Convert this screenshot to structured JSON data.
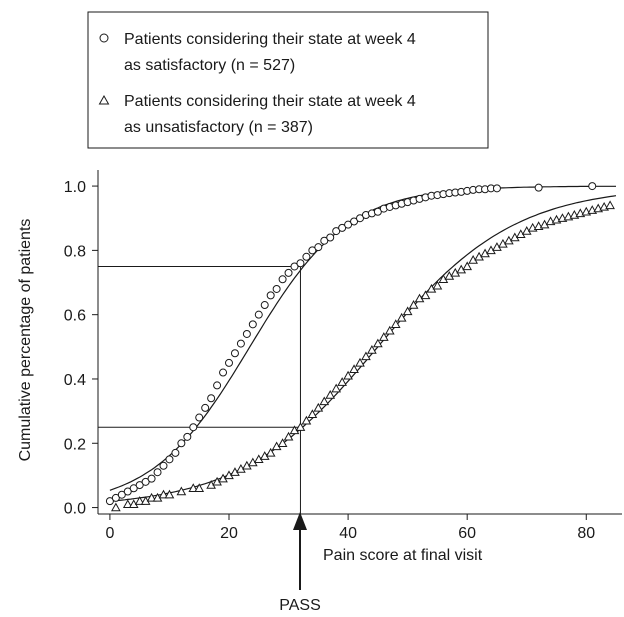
{
  "chart_data": {
    "type": "scatter",
    "xlabel": "Pain score at final visit",
    "ylabel": "Cumulative percentage of patients",
    "xlim": [
      -2,
      86
    ],
    "ylim": [
      -0.02,
      1.05
    ],
    "x_ticks": [
      0,
      20,
      40,
      60,
      80
    ],
    "y_ticks": [
      0.0,
      0.2,
      0.4,
      0.6,
      0.8,
      1.0
    ],
    "legend": {
      "placement": "top",
      "entries": [
        {
          "marker": "circle",
          "lines": [
            "Patients considering their state at week 4",
            "as satisfactory (n = 527)"
          ]
        },
        {
          "marker": "triangle",
          "lines": [
            "Patients considering their state at week 4",
            "as unsatisfactory (n = 387)"
          ]
        }
      ]
    },
    "series": [
      {
        "marker": "circle",
        "fit": {
          "mu": 23.5,
          "s": 8.2
        },
        "x": [
          0,
          1,
          2,
          3,
          4,
          5,
          6,
          7,
          8,
          9,
          10,
          11,
          12,
          13,
          14,
          15,
          16,
          17,
          18,
          19,
          20,
          21,
          22,
          23,
          24,
          25,
          26,
          27,
          28,
          29,
          30,
          31,
          32,
          33,
          34,
          35,
          36,
          37,
          38,
          39,
          40,
          41,
          42,
          43,
          44,
          45,
          46,
          47,
          48,
          49,
          50,
          51,
          52,
          53,
          54,
          55,
          56,
          57,
          58,
          59,
          60,
          61,
          62,
          63,
          64,
          65,
          72,
          81
        ],
        "y": [
          0.02,
          0.03,
          0.04,
          0.05,
          0.06,
          0.07,
          0.08,
          0.09,
          0.11,
          0.13,
          0.15,
          0.17,
          0.2,
          0.22,
          0.25,
          0.28,
          0.31,
          0.34,
          0.38,
          0.42,
          0.45,
          0.48,
          0.51,
          0.54,
          0.57,
          0.6,
          0.63,
          0.66,
          0.68,
          0.71,
          0.73,
          0.75,
          0.76,
          0.78,
          0.8,
          0.81,
          0.83,
          0.84,
          0.86,
          0.87,
          0.88,
          0.89,
          0.9,
          0.91,
          0.915,
          0.92,
          0.93,
          0.935,
          0.94,
          0.945,
          0.95,
          0.955,
          0.96,
          0.965,
          0.97,
          0.972,
          0.975,
          0.978,
          0.98,
          0.982,
          0.985,
          0.988,
          0.99,
          0.99,
          0.993,
          0.993,
          0.995,
          1.0
        ]
      },
      {
        "marker": "triangle",
        "fit": {
          "mu": 45.0,
          "s": 11.5
        },
        "x": [
          1,
          3,
          4,
          5,
          6,
          7,
          8,
          9,
          10,
          12,
          14,
          15,
          17,
          18,
          19,
          20,
          21,
          22,
          23,
          24,
          25,
          26,
          27,
          28,
          29,
          30,
          31,
          32,
          33,
          34,
          35,
          36,
          37,
          38,
          39,
          40,
          41,
          42,
          43,
          44,
          45,
          46,
          47,
          48,
          49,
          50,
          51,
          52,
          53,
          54,
          55,
          56,
          57,
          58,
          59,
          60,
          61,
          62,
          63,
          64,
          65,
          66,
          67,
          68,
          69,
          70,
          71,
          72,
          73,
          74,
          75,
          76,
          77,
          78,
          79,
          80,
          81,
          82,
          83,
          84
        ],
        "y": [
          0.0,
          0.01,
          0.01,
          0.02,
          0.02,
          0.03,
          0.03,
          0.04,
          0.04,
          0.05,
          0.06,
          0.06,
          0.07,
          0.08,
          0.09,
          0.1,
          0.11,
          0.12,
          0.13,
          0.14,
          0.15,
          0.16,
          0.17,
          0.19,
          0.2,
          0.22,
          0.24,
          0.25,
          0.27,
          0.29,
          0.31,
          0.33,
          0.35,
          0.37,
          0.39,
          0.41,
          0.43,
          0.45,
          0.47,
          0.49,
          0.51,
          0.53,
          0.55,
          0.57,
          0.59,
          0.61,
          0.63,
          0.65,
          0.66,
          0.68,
          0.69,
          0.71,
          0.72,
          0.73,
          0.74,
          0.75,
          0.77,
          0.78,
          0.79,
          0.8,
          0.81,
          0.82,
          0.83,
          0.84,
          0.85,
          0.86,
          0.87,
          0.875,
          0.88,
          0.89,
          0.895,
          0.9,
          0.905,
          0.91,
          0.915,
          0.92,
          0.925,
          0.93,
          0.935,
          0.94
        ]
      }
    ],
    "reference": {
      "x": 32,
      "y_levels": [
        0.75,
        0.25
      ],
      "arrow_label": "PASS"
    }
  }
}
